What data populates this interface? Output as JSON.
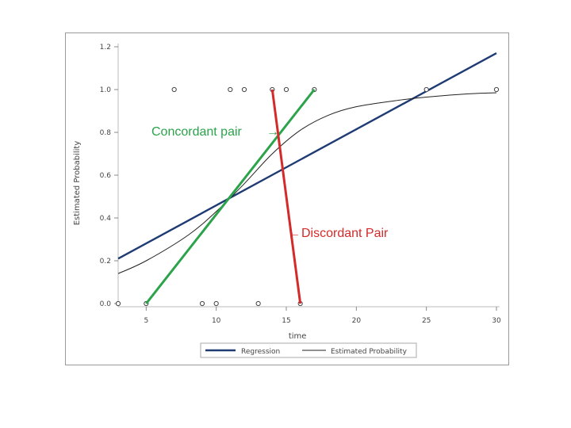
{
  "chart_data": {
    "type": "line",
    "xlabel": "time",
    "ylabel": "Estimated Probability",
    "xlim": [
      3,
      30
    ],
    "ylim": [
      0,
      1.2
    ],
    "x_ticks": [
      5,
      10,
      15,
      20,
      25,
      30
    ],
    "y_ticks": [
      0.0,
      0.2,
      0.4,
      0.6,
      0.8,
      1.0,
      1.2
    ],
    "y_tick_labels": [
      "0.0",
      "0.2",
      "0.4",
      "0.6",
      "0.8",
      "1.0",
      "1.2"
    ],
    "observations": [
      {
        "x": 3,
        "y": 0
      },
      {
        "x": 5,
        "y": 0
      },
      {
        "x": 9,
        "y": 0
      },
      {
        "x": 10,
        "y": 0
      },
      {
        "x": 13,
        "y": 0
      },
      {
        "x": 16,
        "y": 0
      },
      {
        "x": 7,
        "y": 1
      },
      {
        "x": 11,
        "y": 1
      },
      {
        "x": 12,
        "y": 1
      },
      {
        "x": 14,
        "y": 1
      },
      {
        "x": 15,
        "y": 1
      },
      {
        "x": 17,
        "y": 1
      },
      {
        "x": 25,
        "y": 1
      },
      {
        "x": 30,
        "y": 1
      }
    ],
    "series": [
      {
        "name": "Regression",
        "color": "#1f3b73",
        "x": [
          3,
          30
        ],
        "y": [
          0.21,
          1.17
        ]
      },
      {
        "name": "Estimated Probability",
        "color": "#222222",
        "x": [
          3,
          5,
          8,
          10,
          12,
          14,
          16,
          18,
          20,
          23,
          25,
          28,
          30
        ],
        "y": [
          0.14,
          0.2,
          0.32,
          0.43,
          0.56,
          0.7,
          0.81,
          0.88,
          0.92,
          0.95,
          0.965,
          0.98,
          0.985
        ]
      }
    ],
    "annotations": [
      {
        "text": "Concordant pair",
        "arrow": "→",
        "color": "#2aa34a",
        "line": {
          "x": [
            5,
            17
          ],
          "y": [
            0,
            1
          ]
        }
      },
      {
        "text": "Discordant Pair",
        "arrow": "←",
        "color": "#d42a2a",
        "line": {
          "x": [
            14,
            16
          ],
          "y": [
            1,
            0
          ]
        }
      }
    ],
    "legend": {
      "placement": "bottom"
    }
  }
}
